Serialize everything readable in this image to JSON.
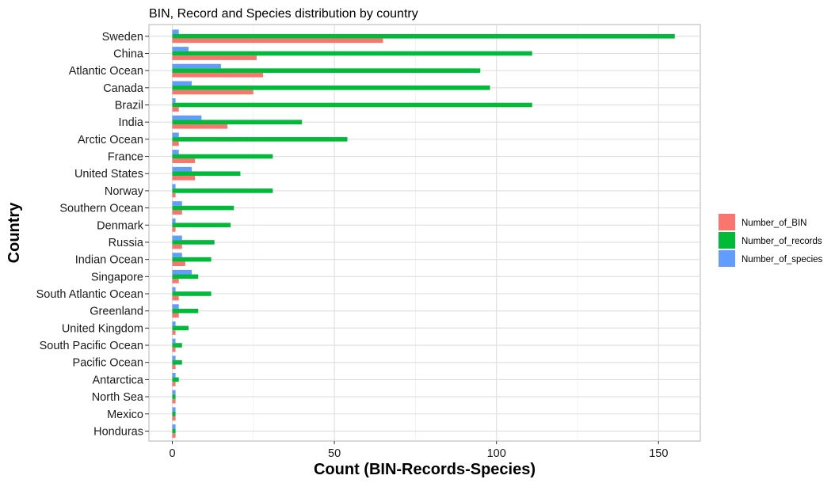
{
  "chart_data": {
    "type": "bar",
    "orientation": "horizontal",
    "title": "BIN, Record and Species distribution by country",
    "xlabel": "Count (BIN-Records-Species)",
    "ylabel": "Country",
    "xlim": [
      0,
      160
    ],
    "xticks": [
      0,
      50,
      100,
      150
    ],
    "grid": true,
    "legend_position": "right",
    "categories": [
      "Sweden",
      "China",
      "Atlantic Ocean",
      "Canada",
      "Brazil",
      "India",
      "Arctic Ocean",
      "France",
      "United States",
      "Norway",
      "Southern Ocean",
      "Denmark",
      "Russia",
      "Indian Ocean",
      "Singapore",
      "South Atlantic Ocean",
      "Greenland",
      "United Kingdom",
      "South Pacific Ocean",
      "Pacific Ocean",
      "Antarctica",
      "North Sea",
      "Mexico",
      "Honduras"
    ],
    "series": [
      {
        "name": "Number_of_BIN",
        "color": "#F8766D",
        "values": [
          65,
          26,
          28,
          25,
          2,
          17,
          2,
          7,
          7,
          1,
          3,
          1,
          3,
          4,
          2,
          2,
          2,
          1,
          1,
          1,
          1,
          1,
          1,
          1
        ]
      },
      {
        "name": "Number_of_records",
        "color": "#00BA38",
        "values": [
          155,
          111,
          95,
          98,
          111,
          40,
          54,
          31,
          21,
          31,
          19,
          18,
          13,
          12,
          8,
          12,
          8,
          5,
          3,
          3,
          2,
          1,
          1,
          1
        ]
      },
      {
        "name": "Number_of_species",
        "color": "#619CFF",
        "values": [
          2,
          5,
          15,
          6,
          1,
          9,
          2,
          2,
          6,
          1,
          3,
          1,
          3,
          3,
          6,
          1,
          2,
          1,
          1,
          1,
          1,
          1,
          1,
          1
        ]
      }
    ]
  }
}
